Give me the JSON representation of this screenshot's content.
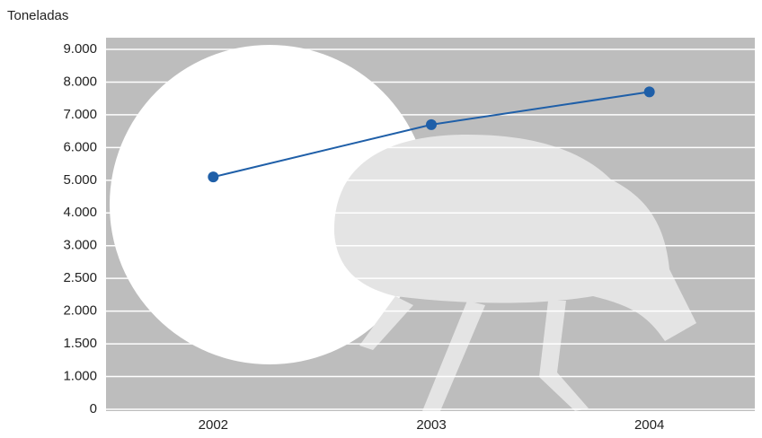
{
  "chart_data": {
    "type": "line",
    "y_label": "Toneladas",
    "categories": [
      "2002",
      "2003",
      "2004"
    ],
    "series": [
      {
        "name": "Toneladas",
        "color": "#1f5fa8",
        "values": [
          5100,
          6700,
          7700
        ]
      }
    ],
    "ylim": [
      0,
      9000
    ],
    "yticks": [
      0,
      {
        "value": 1000,
        "label": "1.000"
      },
      {
        "value": 1500,
        "label": "1.500"
      },
      {
        "value": 2000,
        "label": "2.000"
      },
      {
        "value": 2500,
        "label": "2.500"
      },
      {
        "value": 3000,
        "label": "3.000"
      },
      {
        "value": 4000,
        "label": "4.000"
      },
      {
        "value": 5000,
        "label": "5.000"
      },
      {
        "value": 6000,
        "label": "6.000"
      },
      {
        "value": 7000,
        "label": "7.000"
      },
      {
        "value": 8000,
        "label": "8.000"
      },
      {
        "value": 9000,
        "label": "9.000"
      }
    ],
    "grid": true
  }
}
